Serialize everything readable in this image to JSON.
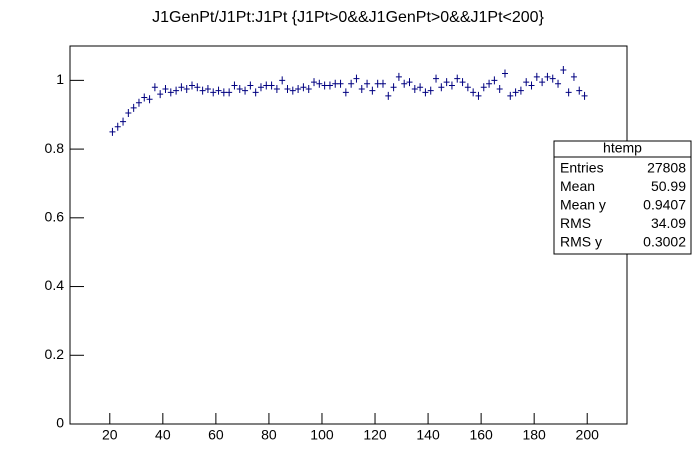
{
  "chart_data": {
    "type": "scatter",
    "title": "J1GenPt/J1Pt:J1Pt {J1Pt>0&&J1GenPt>0&&J1Pt<200}",
    "x": [
      21,
      23,
      25,
      27,
      29,
      31,
      33,
      35,
      37,
      39,
      41,
      43,
      45,
      47,
      49,
      51,
      53,
      55,
      57,
      59,
      61,
      63,
      65,
      67,
      69,
      71,
      73,
      75,
      77,
      79,
      81,
      83,
      85,
      87,
      89,
      91,
      93,
      95,
      97,
      99,
      101,
      103,
      105,
      107,
      109,
      111,
      113,
      115,
      117,
      119,
      121,
      123,
      125,
      127,
      129,
      131,
      133,
      135,
      137,
      139,
      141,
      143,
      145,
      147,
      149,
      151,
      153,
      155,
      157,
      159,
      161,
      163,
      165,
      167,
      169,
      171,
      173,
      175,
      177,
      179,
      181,
      183,
      185,
      187,
      189,
      191,
      193,
      195,
      197,
      199
    ],
    "values": [
      0.85,
      0.865,
      0.88,
      0.905,
      0.92,
      0.935,
      0.95,
      0.945,
      0.98,
      0.96,
      0.975,
      0.965,
      0.97,
      0.98,
      0.975,
      0.985,
      0.98,
      0.97,
      0.975,
      0.965,
      0.97,
      0.965,
      0.965,
      0.985,
      0.975,
      0.97,
      0.985,
      0.965,
      0.98,
      0.985,
      0.985,
      0.975,
      1.0,
      0.975,
      0.97,
      0.975,
      0.98,
      0.975,
      0.995,
      0.99,
      0.985,
      0.985,
      0.99,
      0.99,
      0.965,
      0.99,
      1.005,
      0.975,
      0.99,
      0.97,
      0.99,
      0.99,
      0.955,
      0.98,
      1.01,
      0.99,
      0.995,
      0.975,
      0.98,
      0.965,
      0.97,
      1.005,
      0.98,
      0.995,
      0.985,
      1.005,
      0.995,
      0.98,
      0.965,
      0.955,
      0.98,
      0.99,
      1.0,
      0.975,
      1.02,
      0.955,
      0.965,
      0.97,
      0.995,
      0.985,
      1.01,
      0.995,
      1.01,
      1.005,
      0.99,
      1.03,
      0.965,
      1.01,
      0.97,
      0.955
    ],
    "color": "#000080",
    "xlim": [
      5,
      215
    ],
    "xticks": [
      20,
      40,
      60,
      80,
      100,
      120,
      140,
      160,
      180,
      200
    ],
    "ylim": [
      0,
      1.1
    ],
    "yticks": [
      0,
      0.2,
      0.4,
      0.6,
      0.8,
      1
    ],
    "stats": {
      "title": "htemp",
      "rows": [
        [
          "Entries",
          "27808"
        ],
        [
          "Mean",
          "50.99"
        ],
        [
          "Mean y",
          "0.9407"
        ],
        [
          "RMS",
          "34.09"
        ],
        [
          "RMS y",
          "0.3002"
        ]
      ]
    }
  }
}
